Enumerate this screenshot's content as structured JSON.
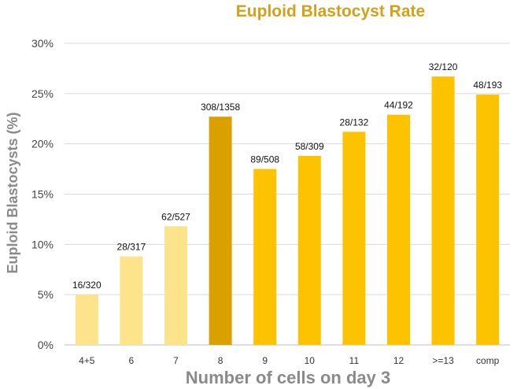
{
  "chart_data": {
    "type": "bar",
    "title": "Euploid Blastocyst Rate",
    "xlabel": "Number of cells on day 3",
    "ylabel": "Euploid Blastocysts (%)",
    "ylim": [
      0,
      30
    ],
    "yticks": [
      0,
      5,
      10,
      15,
      20,
      25,
      30
    ],
    "ytick_labels": [
      "0%",
      "5%",
      "10%",
      "15%",
      "20%",
      "25%",
      "30%"
    ],
    "grid": true,
    "categories": [
      "4+5",
      "6",
      "7",
      "8",
      "9",
      "10",
      "11",
      "12",
      ">=13",
      "comp"
    ],
    "values": [
      5.0,
      8.8,
      11.8,
      22.7,
      17.5,
      18.8,
      21.2,
      22.9,
      26.7,
      24.9
    ],
    "data_labels": [
      "16/320",
      "28/317",
      "62/527",
      "308/1358",
      "89/508",
      "58/309",
      "28/132",
      "44/192",
      "32/120",
      "48/193"
    ],
    "colors": [
      "#fde38a",
      "#fde38a",
      "#fde38a",
      "#d9a000",
      "#fdc300",
      "#fdc300",
      "#fdc300",
      "#fdc300",
      "#fdc300",
      "#fdc300"
    ]
  }
}
